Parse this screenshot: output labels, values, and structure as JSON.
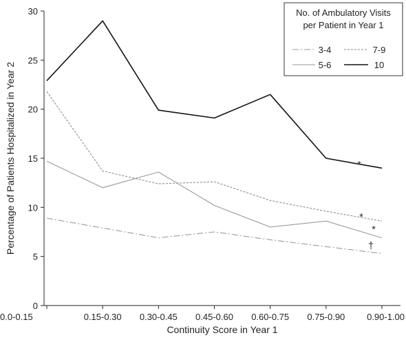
{
  "chart_data": {
    "type": "line",
    "categories": [
      "0.0-0.15",
      "0.15-0.30",
      "0.30-0.45",
      "0.45-0.60",
      "0.60-0.75",
      "0.75-0.90",
      "0.90-1.00"
    ],
    "xlabel": "Continuity Score in Year 1",
    "ylabel": "Percentage of Patients Hospitalized in Year 2",
    "ylim": [
      0,
      30
    ],
    "yticks": [
      0,
      5,
      10,
      15,
      20,
      25,
      30
    ],
    "grid": false,
    "legend": {
      "title_line1": "No. of Ambulatory Visits",
      "title_line2": "per Patient in Year 1",
      "position": "top-right"
    },
    "series": [
      {
        "name": "3-4",
        "values": [
          8.9,
          7.9,
          6.9,
          7.5,
          6.7,
          6.0,
          5.3
        ],
        "color": "#999999",
        "style": "dashdot"
      },
      {
        "name": "5-6",
        "values": [
          14.7,
          12.0,
          13.6,
          10.2,
          8.0,
          8.6,
          6.9
        ],
        "color": "#999999",
        "style": "solid-thin"
      },
      {
        "name": "7-9",
        "values": [
          21.8,
          13.7,
          12.4,
          12.6,
          10.7,
          9.6,
          8.6
        ],
        "color": "#999999",
        "style": "dotted"
      },
      {
        "name": "10",
        "values": [
          22.9,
          29.0,
          19.9,
          19.1,
          21.5,
          15.0,
          14.0
        ],
        "color": "#111111",
        "style": "solid"
      }
    ],
    "annotations": [
      {
        "text": "*",
        "series": "10"
      },
      {
        "text": "*",
        "series": "7-9"
      },
      {
        "text": "*",
        "series": "5-6"
      },
      {
        "text": "†",
        "series": "3-4"
      }
    ]
  }
}
